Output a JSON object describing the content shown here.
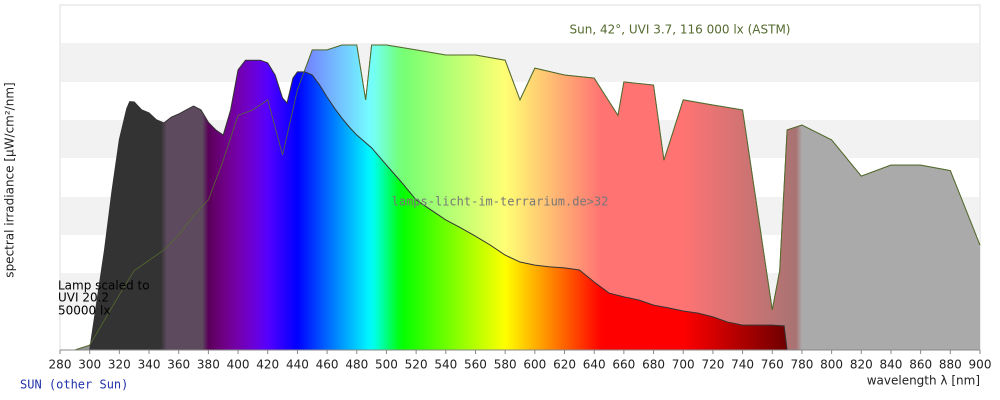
{
  "chart_data": {
    "type": "spectrum",
    "title": "Sun, 42°, UVI 3.7, 116 000 lx (ASTM)",
    "watermark": "lamps-licht-im-terrarium.de>32",
    "annotations": [
      "Lamp scaled to",
      "UVI 20.2",
      "50000 lx"
    ],
    "footer": "SUN (other Sun)",
    "x_label": "wavelength λ [nm]",
    "y_label": "spectral irradiance [µW/cm²/nm]",
    "xlim": [
      280,
      900
    ],
    "ylim": [
      0,
      100
    ],
    "xticks": [
      280,
      300,
      320,
      340,
      360,
      380,
      400,
      420,
      440,
      460,
      480,
      500,
      520,
      540,
      560,
      580,
      600,
      620,
      640,
      660,
      680,
      700,
      720,
      740,
      760,
      780,
      800,
      820,
      840,
      860,
      880,
      900
    ],
    "series": [
      {
        "color": "#556b2f",
        "x": [
          290,
          300,
          310,
          320,
          330,
          340,
          350,
          360,
          370,
          380,
          390,
          400,
          410,
          420,
          430,
          440,
          450,
          460,
          470,
          480,
          486,
          490,
          500,
          520,
          540,
          560,
          580,
          590,
          600,
          620,
          640,
          656,
          660,
          680,
          687,
          700,
          720,
          740,
          760,
          765,
          770,
          780,
          800,
          820,
          840,
          860,
          880,
          900
        ],
        "values": [
          0,
          1.4,
          8.7,
          16,
          23,
          26,
          29,
          33.3,
          39,
          43.5,
          55,
          68,
          69.6,
          72.5,
          56.5,
          75.4,
          87,
          87,
          88.4,
          88.4,
          72.5,
          88.4,
          88.4,
          87,
          85.5,
          85.5,
          84,
          72.5,
          81.7,
          79.7,
          78.8,
          68,
          77.7,
          76.8,
          55,
          72.5,
          71,
          69.6,
          11.6,
          23,
          63.8,
          65.2,
          60.9,
          50.4,
          53.6,
          53.6,
          52,
          30.4
        ]
      },
      {
        "color": "#333333",
        "x": [
          300,
          305,
          310,
          315,
          320,
          325,
          327,
          330,
          335,
          340,
          345,
          350,
          355,
          360,
          365,
          370,
          375,
          380,
          385,
          390,
          395,
          400,
          405,
          410,
          415,
          420,
          425,
          430,
          433,
          437,
          440,
          445,
          450,
          455,
          460,
          465,
          470,
          475,
          480,
          490,
          500,
          510,
          520,
          530,
          540,
          550,
          560,
          570,
          580,
          590,
          600,
          610,
          620,
          630,
          640,
          650,
          660,
          670,
          680,
          690,
          700,
          710,
          720,
          730,
          740,
          750,
          760,
          768,
          770
        ],
        "values": [
          0,
          14.5,
          29,
          46,
          61,
          70,
          72,
          71.9,
          69.6,
          68.7,
          66.7,
          65.8,
          67.5,
          68.4,
          69.6,
          70.7,
          69.6,
          66,
          63.8,
          62.3,
          69.6,
          81.2,
          84,
          84,
          84,
          83.2,
          79.7,
          73,
          71.6,
          78.8,
          80.6,
          80.6,
          79.7,
          76.8,
          73.3,
          70.1,
          67.2,
          64.6,
          62.3,
          58.6,
          53.6,
          48.7,
          43.5,
          40.6,
          37.7,
          35.4,
          33,
          30.4,
          27.5,
          25.5,
          24.6,
          24.1,
          23.8,
          23.2,
          19.7,
          16.5,
          15.4,
          14.5,
          13,
          12.2,
          11.3,
          10.7,
          9.6,
          8.1,
          7.2,
          7.2,
          7.2,
          7,
          0
        ]
      }
    ]
  }
}
